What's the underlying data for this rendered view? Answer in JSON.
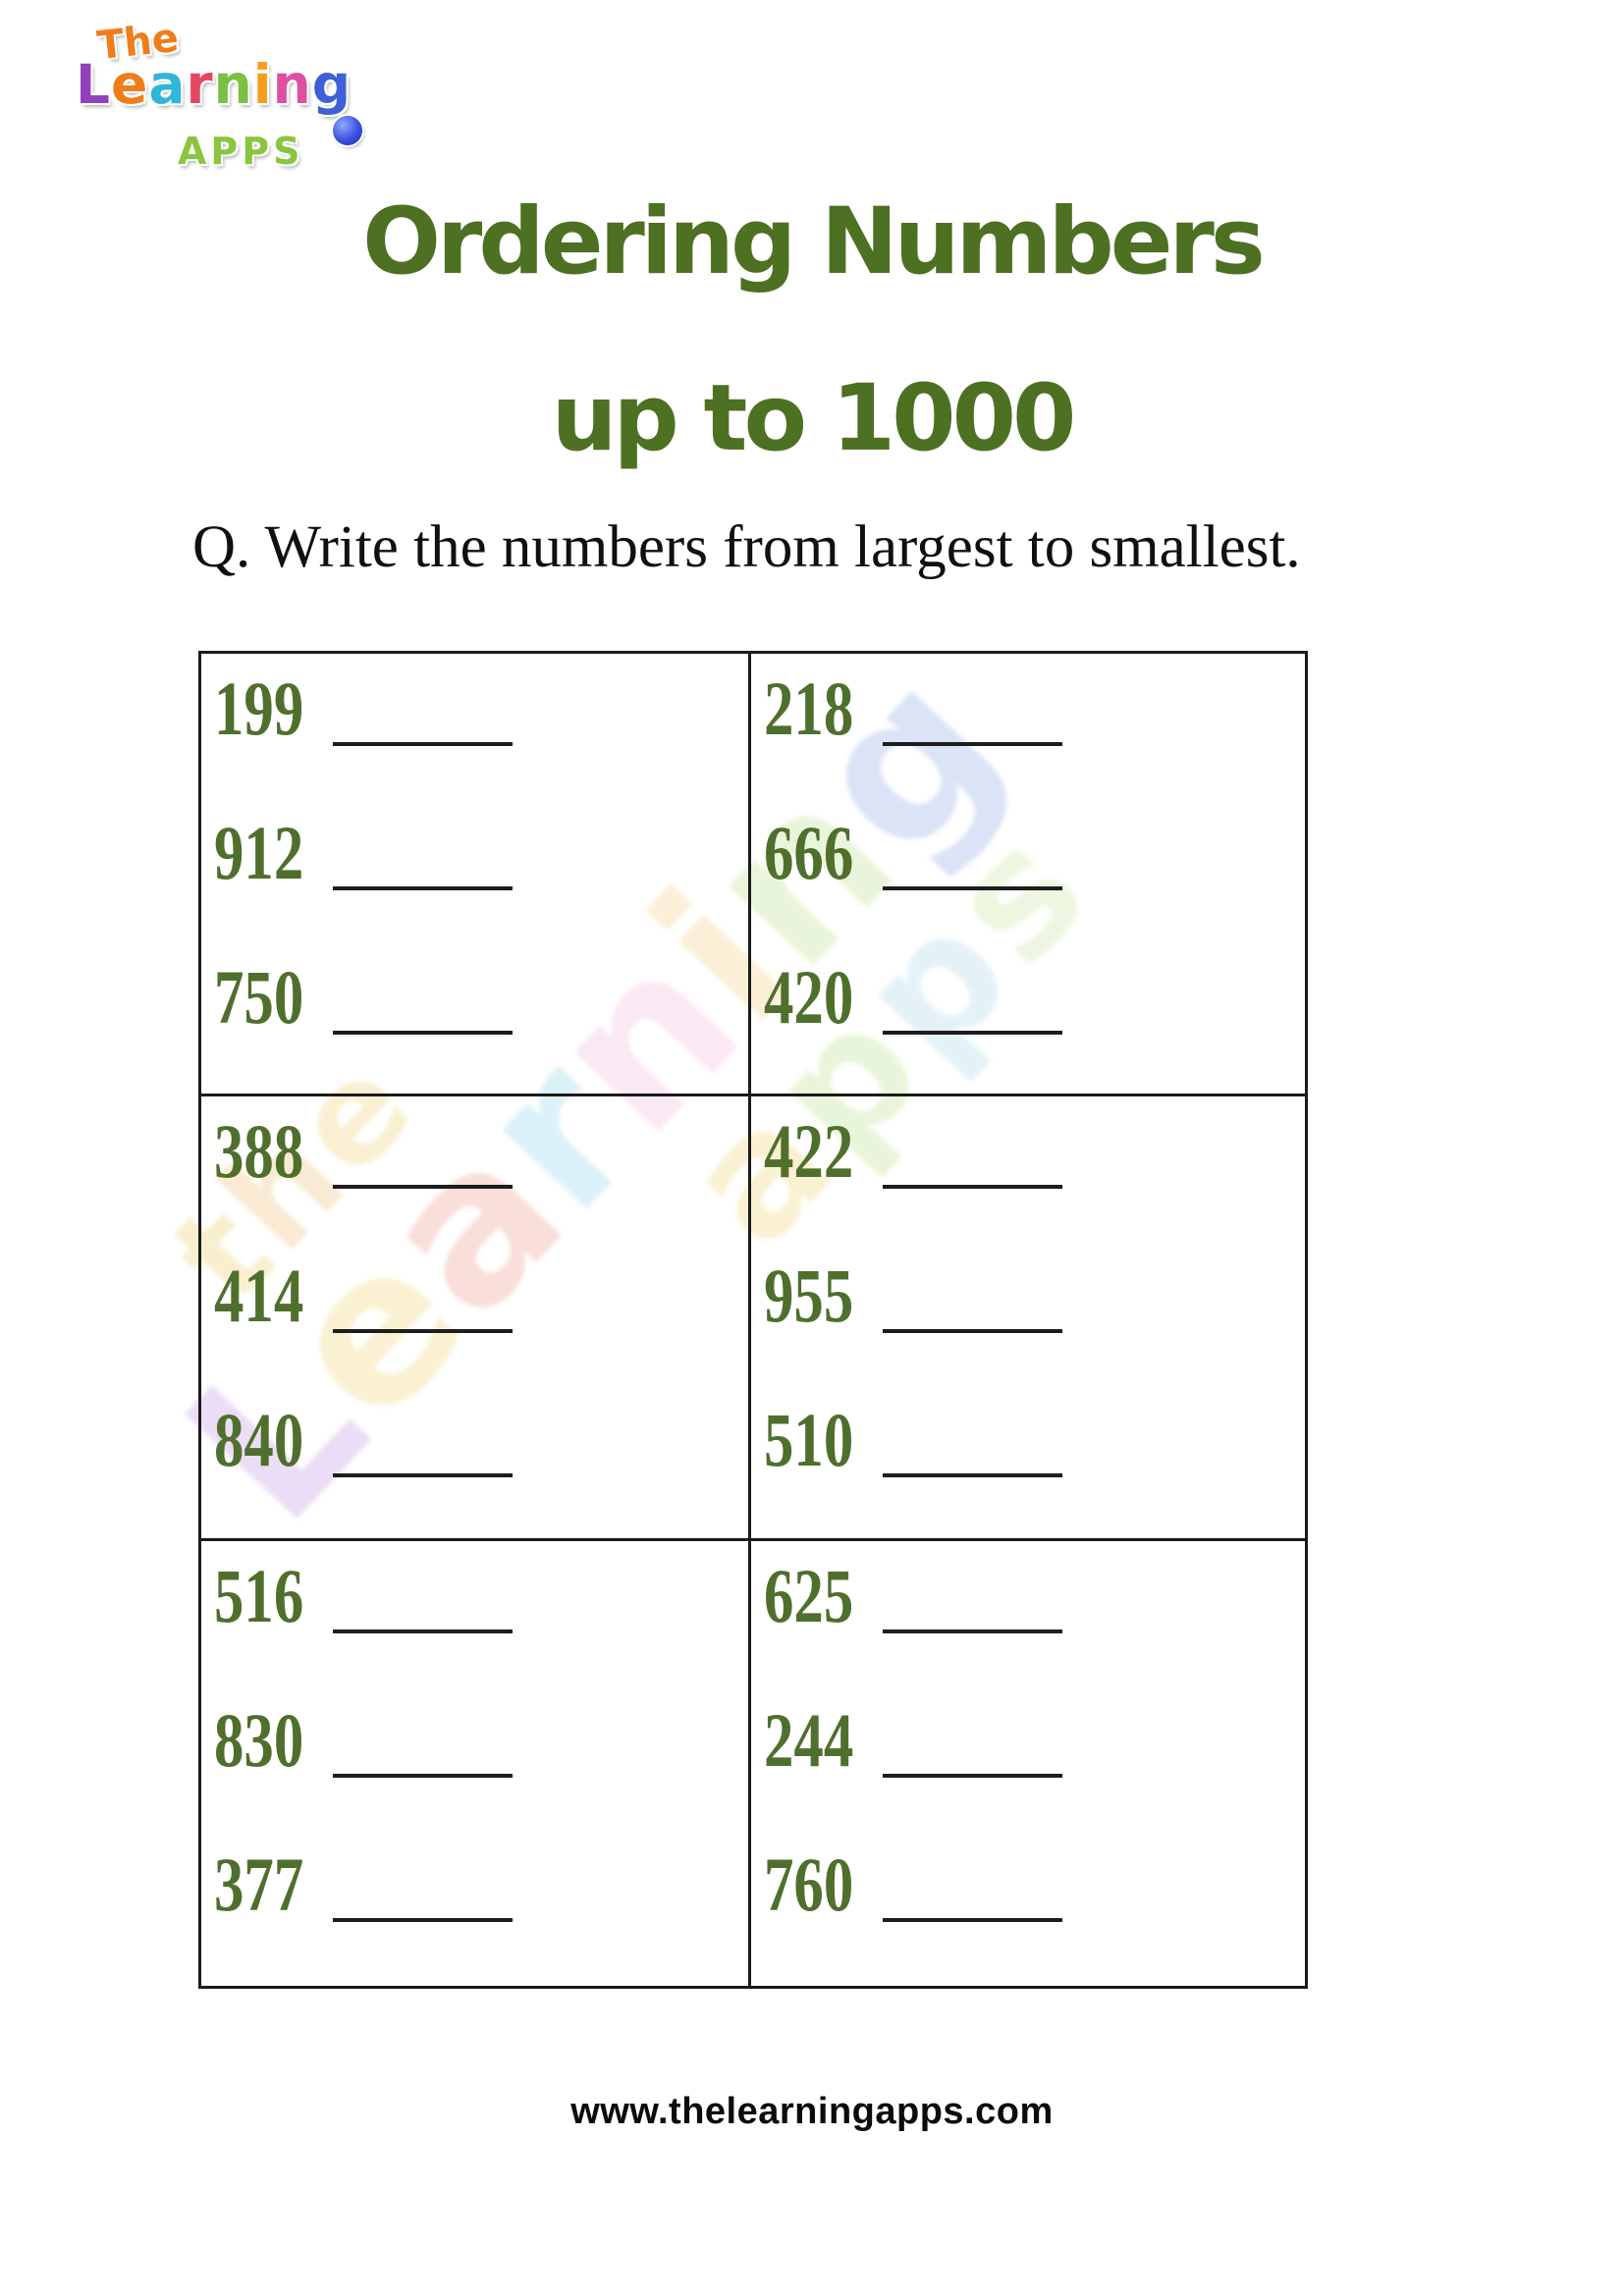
{
  "header": {
    "logo": {
      "the": "The",
      "the_color": "#ef7d1a",
      "learning_letters": [
        {
          "ch": "L",
          "style": "color:#9240bb"
        },
        {
          "ch": "e",
          "style": "color:#ef7d1a"
        },
        {
          "ch": "a",
          "style": "color:#30b6d9"
        },
        {
          "ch": "r",
          "style": "color:#e5485e"
        },
        {
          "ch": "n",
          "style": "color:#79c043"
        },
        {
          "ch": "i",
          "style": "color:#f59e1b"
        },
        {
          "ch": "n",
          "style": "color:#e04fa0"
        },
        {
          "ch": "g",
          "style": "color:#3f5fd9"
        }
      ],
      "apps": "APPS",
      "apps_color": "#8bc53f"
    },
    "title_line1": "Ordering Numbers",
    "title_line2": "up to 1000",
    "title_style": "color:#4d7022",
    "title_color": "#4d7022"
  },
  "question": {
    "text": "Q. Write the numbers from largest to smallest."
  },
  "worksheet": {
    "number_color": "#4f6f2d",
    "container_style": "color:#4f6f2d",
    "line_color": "#1d1d1d",
    "border_color": "#1b1b1b",
    "cells": [
      {
        "numbers": [
          "199",
          "912",
          "750"
        ]
      },
      {
        "numbers": [
          "218",
          "666",
          "420"
        ]
      },
      {
        "numbers": [
          "388",
          "414",
          "840"
        ]
      },
      {
        "numbers": [
          "422",
          "955",
          "510"
        ]
      },
      {
        "numbers": [
          "516",
          "830",
          "377"
        ]
      },
      {
        "numbers": [
          "625",
          "244",
          "760"
        ]
      }
    ]
  },
  "watermark": {
    "the_letters": [
      {
        "ch": "t",
        "style": "color:#f3e3a8"
      },
      {
        "ch": "h",
        "style": "color:#f3d9b0"
      },
      {
        "ch": "e",
        "style": "color:#f5e3ae"
      }
    ],
    "learning_letters": [
      {
        "ch": "L",
        "style": "color:#dcc2ee"
      },
      {
        "ch": "e",
        "style": "color:#f6e7b0"
      },
      {
        "ch": "a",
        "style": "color:#f5c4bc"
      },
      {
        "ch": "r",
        "style": "color:#bfe6f4"
      },
      {
        "ch": "n",
        "style": "color:#f7d6ea"
      },
      {
        "ch": "i",
        "style": "color:#f8e4b8"
      },
      {
        "ch": "n",
        "style": "color:#d8eebc"
      },
      {
        "ch": "g",
        "style": "color:#bfcdf0"
      }
    ],
    "apps_letters": [
      {
        "ch": "a",
        "style": "color:#f6e7b0"
      },
      {
        "ch": "p",
        "style": "color:#d8eebc"
      },
      {
        "ch": "p",
        "style": "color:#cfe9f2"
      },
      {
        "ch": "s",
        "style": "color:#dff0c8"
      }
    ]
  },
  "footer": {
    "url": "www.thelearningapps.com"
  }
}
